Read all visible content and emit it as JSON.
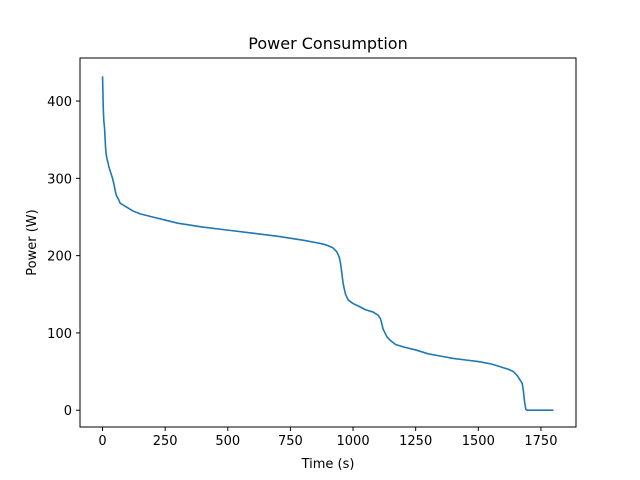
{
  "chart_data": {
    "type": "line",
    "title": "Power Consumption",
    "xlabel": "Time (s)",
    "ylabel": "Power (W)",
    "xlim": [
      -90,
      1890
    ],
    "ylim": [
      -21.7,
      455.7
    ],
    "xticks": [
      0,
      250,
      500,
      750,
      1000,
      1250,
      1500,
      1750
    ],
    "yticks": [
      0,
      100,
      200,
      300,
      400
    ],
    "grid": false,
    "series": [
      {
        "color": "#1f77b4",
        "x": [
          0,
          3,
          5,
          8,
          12,
          15,
          18,
          22,
          25,
          30,
          35,
          40,
          45,
          50,
          55,
          60,
          65,
          70,
          80,
          90,
          100,
          120,
          150,
          200,
          250,
          300,
          400,
          500,
          600,
          700,
          800,
          850,
          880,
          900,
          920,
          935,
          945,
          950,
          955,
          960,
          965,
          970,
          980,
          1000,
          1020,
          1050,
          1080,
          1100,
          1110,
          1120,
          1135,
          1150,
          1170,
          1200,
          1250,
          1300,
          1350,
          1400,
          1450,
          1500,
          1550,
          1580,
          1600,
          1620,
          1640,
          1655,
          1665,
          1675,
          1680,
          1685,
          1690,
          1695,
          1700,
          1750,
          1800
        ],
        "y": [
          432,
          390,
          375,
          365,
          340,
          330,
          325,
          320,
          315,
          310,
          305,
          300,
          293,
          285,
          278,
          275,
          272,
          268,
          266,
          264,
          262,
          258,
          254,
          250,
          246,
          242,
          237,
          233,
          229,
          225,
          220,
          217,
          215,
          213,
          210,
          205,
          198,
          190,
          178,
          165,
          157,
          150,
          143,
          138,
          135,
          130,
          127,
          123,
          118,
          105,
          95,
          90,
          85,
          82,
          78,
          73,
          70,
          67,
          65,
          63,
          60,
          57,
          55,
          53,
          50,
          45,
          40,
          35,
          25,
          10,
          1,
          0,
          0,
          0,
          0
        ]
      }
    ]
  }
}
